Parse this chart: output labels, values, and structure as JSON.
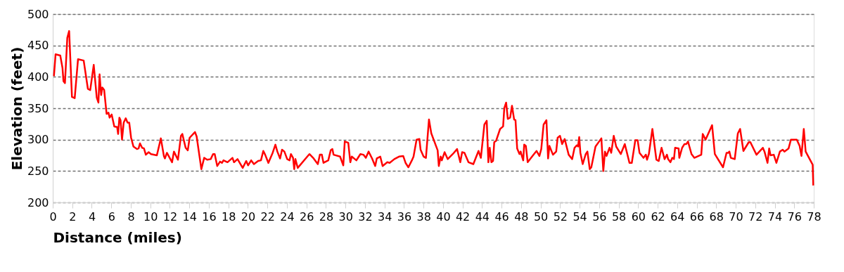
{
  "chart_data": {
    "type": "line",
    "xlabel": "Distance (miles)",
    "ylabel": "Elevation (feet)",
    "xlim": [
      0,
      78
    ],
    "xticks": [
      0,
      2,
      4,
      6,
      8,
      10,
      12,
      14,
      16,
      18,
      20,
      22,
      24,
      26,
      28,
      30,
      32,
      34,
      36,
      38,
      40,
      42,
      44,
      46,
      48,
      50,
      52,
      54,
      56,
      58,
      60,
      62,
      64,
      66,
      68,
      70,
      72,
      74,
      76,
      78
    ],
    "ylim": [
      200,
      500
    ],
    "yticks": [
      200,
      250,
      300,
      350,
      400,
      450,
      500
    ],
    "grid": "y",
    "marker": "none",
    "line_style": "solid",
    "series": [
      {
        "color": "#ff0000",
        "x": [
          0.12,
          0.29,
          0.77,
          1.0,
          1.1,
          1.25,
          1.49,
          1.68,
          1.97,
          2.25,
          2.59,
          3.17,
          3.6,
          3.84,
          4.2,
          4.51,
          4.68,
          4.8,
          4.96,
          5.08,
          5.27,
          5.52,
          5.71,
          5.83,
          6.04,
          6.31,
          6.6,
          6.7,
          6.83,
          6.95,
          7.1,
          7.27,
          7.48,
          7.67,
          7.84,
          8.03,
          8.27,
          8.63,
          8.8,
          8.94,
          9.16,
          9.35,
          9.54,
          9.83,
          10.07,
          10.67,
          11.08,
          11.39,
          11.5,
          11.7,
          12.23,
          12.42,
          12.83,
          13.14,
          13.28,
          13.62,
          13.84,
          14.03,
          14.58,
          14.75,
          15.23,
          15.52,
          15.83,
          16.19,
          16.43,
          16.6,
          16.86,
          17.15,
          17.34,
          17.5,
          17.91,
          18.42,
          18.58,
          18.94,
          19.47,
          19.83,
          20.02,
          20.34,
          20.62,
          21.05,
          21.34,
          21.58,
          21.77,
          22.1,
          22.54,
          22.82,
          23.02,
          23.3,
          23.5,
          23.74,
          24.03,
          24.27,
          24.41,
          24.63,
          24.75,
          24.87,
          25.11,
          26.09,
          26.31,
          26.74,
          27.17,
          27.38,
          27.58,
          27.75,
          28.24,
          28.49,
          28.66,
          28.78,
          29.45,
          29.78,
          29.93,
          30.29,
          30.5,
          30.65,
          31.12,
          31.53,
          31.84,
          32.09,
          32.37,
          32.73,
          33.05,
          33.21,
          33.57,
          33.81,
          34.29,
          34.53,
          35.01,
          35.49,
          35.92,
          36.16,
          36.45,
          36.81,
          36.98,
          37.29,
          37.58,
          37.7,
          38.01,
          38.25,
          38.56,
          38.8,
          39.45,
          39.57,
          39.76,
          39.88,
          40.16,
          40.48,
          41.0,
          41.44,
          41.77,
          41.96,
          42.2,
          42.61,
          43.11,
          43.64,
          43.88,
          44.24,
          44.48,
          44.65,
          44.79,
          44.96,
          45.13,
          45.25,
          45.44,
          45.85,
          46.16,
          46.28,
          46.47,
          46.64,
          46.88,
          47.07,
          47.29,
          47.43,
          47.6,
          47.84,
          47.96,
          48.08,
          48.22,
          48.32,
          48.49,
          48.68,
          49.28,
          49.59,
          49.88,
          50.07,
          50.31,
          50.6,
          50.77,
          50.91,
          51.27,
          51.6,
          51.75,
          51.99,
          52.21,
          52.47,
          52.88,
          53.24,
          53.48,
          53.72,
          53.84,
          53.96,
          54.08,
          54.32,
          54.63,
          54.8,
          55.04,
          55.2,
          55.63,
          56.23,
          56.43,
          56.6,
          56.76,
          57.07,
          57.24,
          57.5,
          57.75,
          58.22,
          58.63,
          59.11,
          59.35,
          59.71,
          59.95,
          60.14,
          60.55,
          60.79,
          60.91,
          61.1,
          61.46,
          61.87,
          62.11,
          62.4,
          62.71,
          62.95,
          63.07,
          63.31,
          63.5,
          63.67,
          63.79,
          64.15,
          64.22,
          64.51,
          64.75,
          64.94,
          65.11,
          65.47,
          65.76,
          66.47,
          66.62,
          66.91,
          67.58,
          67.86,
          68.7,
          69.06,
          69.23,
          69.35,
          69.5,
          69.9,
          70.22,
          70.45,
          70.79,
          71.34,
          71.5,
          72.13,
          72.78,
          72.95,
          73.26,
          73.43,
          73.57,
          73.9,
          74.17,
          74.53,
          74.82,
          74.99,
          75.42,
          75.66,
          76.26,
          76.55,
          76.74,
          76.98,
          77.17,
          77.89,
          77.95
        ],
        "values": [
          401,
          436,
          434,
          414,
          393,
          390,
          462,
          473,
          368,
          366,
          428,
          426,
          381,
          379,
          419,
          367,
          359,
          404,
          371,
          383,
          379,
          341,
          343,
          335,
          340,
          321,
          320,
          309,
          335,
          331,
          300,
          327,
          334,
          327,
          327,
          303,
          289,
          285,
          286,
          294,
          287,
          286,
          276,
          280,
          277,
          275,
          302,
          274,
          270,
          279,
          264,
          281,
          268,
          306,
          309,
          287,
          283,
          303,
          312,
          305,
          253,
          271,
          268,
          269,
          277,
          277,
          258,
          265,
          263,
          267,
          264,
          271,
          264,
          269,
          255,
          266,
          259,
          267,
          261,
          266,
          267,
          282,
          276,
          263,
          279,
          292,
          281,
          270,
          284,
          281,
          269,
          267,
          277,
          271,
          253,
          269,
          255,
          273,
          277,
          270,
          261,
          276,
          276,
          263,
          267,
          283,
          285,
          276,
          273,
          259,
          297,
          295,
          264,
          273,
          267,
          277,
          276,
          271,
          281,
          270,
          258,
          270,
          273,
          258,
          264,
          263,
          269,
          273,
          274,
          263,
          256,
          267,
          273,
          300,
          301,
          284,
          273,
          271,
          332,
          310,
          283,
          258,
          273,
          267,
          280,
          269,
          277,
          285,
          264,
          280,
          279,
          264,
          261,
          282,
          271,
          324,
          330,
          264,
          287,
          264,
          266,
          296,
          298,
          317,
          321,
          350,
          359,
          333,
          335,
          354,
          332,
          331,
          286,
          277,
          281,
          274,
          267,
          292,
          290,
          264,
          276,
          282,
          274,
          285,
          324,
          331,
          270,
          290,
          276,
          281,
          303,
          306,
          293,
          301,
          276,
          269,
          287,
          291,
          289,
          304,
          279,
          261,
          277,
          281,
          253,
          256,
          289,
          302,
          250,
          281,
          274,
          287,
          279,
          306,
          289,
          277,
          293,
          263,
          263,
          299,
          299,
          279,
          271,
          276,
          268,
          277,
          317,
          268,
          266,
          287,
          269,
          276,
          269,
          264,
          271,
          269,
          287,
          286,
          271,
          287,
          293,
          293,
          297,
          277,
          271,
          276,
          309,
          300,
          323,
          277,
          256,
          279,
          279,
          281,
          271,
          269,
          310,
          317,
          282,
          296,
          296,
          276,
          287,
          281,
          263,
          286,
          275,
          276,
          263,
          281,
          284,
          281,
          286,
          300,
          300,
          290,
          274,
          317,
          281,
          260,
          227
        ]
      }
    ]
  }
}
